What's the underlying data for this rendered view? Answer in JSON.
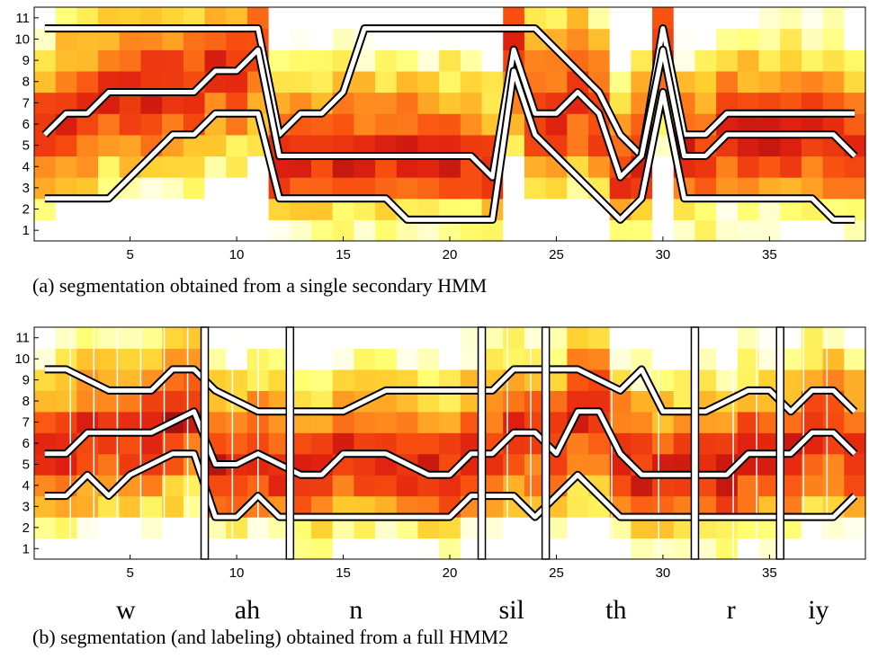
{
  "colors": {
    "map": [
      "#000000",
      "#5a0000",
      "#a01010",
      "#e02010",
      "#f85010",
      "#ff9020",
      "#ffd030",
      "#ffff70",
      "#ffffff"
    ]
  },
  "chart_data": [
    {
      "type": "heatmap",
      "caption": "(a) segmentation obtained from a single secondary HMM",
      "xlim": [
        0.5,
        39.5
      ],
      "ylim": [
        0.5,
        11.5
      ],
      "xticks": [
        5,
        10,
        15,
        20,
        25,
        30,
        35
      ],
      "yticks": [
        1,
        2,
        3,
        4,
        5,
        6,
        7,
        8,
        9,
        10,
        11
      ],
      "lines": [
        {
          "x": [
            1,
            2,
            3,
            4,
            5,
            6,
            7,
            8,
            9,
            10,
            11,
            12,
            13,
            14,
            15,
            16,
            17,
            18,
            19,
            20,
            21,
            22,
            23,
            24,
            25,
            26,
            27,
            28,
            29,
            30,
            31,
            32,
            33,
            34,
            35,
            36,
            37,
            38,
            39
          ],
          "y": [
            10.5,
            10.5,
            10.5,
            10.5,
            10.5,
            10.5,
            10.5,
            10.5,
            10.5,
            10.5,
            10.5,
            5.5,
            6.5,
            6.5,
            7.5,
            10.5,
            10.5,
            10.5,
            10.5,
            10.5,
            10.5,
            10.5,
            10.5,
            10.5,
            9.5,
            8.5,
            7.5,
            5.5,
            4.5,
            10.5,
            5.5,
            5.5,
            6.5,
            6.5,
            6.5,
            6.5,
            6.5,
            6.5,
            6.5
          ]
        },
        {
          "x": [
            1,
            2,
            3,
            4,
            5,
            6,
            7,
            8,
            9,
            10,
            11,
            12,
            13,
            14,
            15,
            16,
            17,
            18,
            19,
            20,
            21,
            22,
            23,
            24,
            25,
            26,
            27,
            28,
            29,
            30,
            31,
            32,
            33,
            34,
            35,
            36,
            37,
            38,
            39
          ],
          "y": [
            5.5,
            6.5,
            6.5,
            7.5,
            7.5,
            7.5,
            7.5,
            7.5,
            8.5,
            8.5,
            9.5,
            4.5,
            4.5,
            4.5,
            4.5,
            4.5,
            4.5,
            4.5,
            4.5,
            4.5,
            4.5,
            3.5,
            9.5,
            6.5,
            6.5,
            7.5,
            6.5,
            3.5,
            4.5,
            9.5,
            4.5,
            4.5,
            5.5,
            5.5,
            5.5,
            5.5,
            5.5,
            5.5,
            4.5
          ]
        },
        {
          "x": [
            1,
            2,
            3,
            4,
            5,
            6,
            7,
            8,
            9,
            10,
            11,
            12,
            13,
            14,
            15,
            16,
            17,
            18,
            19,
            20,
            21,
            22,
            23,
            24,
            25,
            26,
            27,
            28,
            29,
            30,
            31,
            32,
            33,
            34,
            35,
            36,
            37,
            38,
            39
          ],
          "y": [
            2.5,
            2.5,
            2.5,
            2.5,
            3.5,
            4.5,
            5.5,
            5.5,
            6.5,
            6.5,
            6.5,
            2.5,
            2.5,
            2.5,
            2.5,
            2.5,
            2.5,
            1.5,
            1.5,
            1.5,
            1.5,
            1.5,
            8.5,
            5.5,
            4.5,
            3.5,
            2.5,
            1.5,
            2.5,
            7.5,
            2.5,
            2.5,
            2.5,
            2.5,
            2.5,
            2.5,
            2.5,
            1.5,
            1.5
          ]
        }
      ],
      "vlines": [],
      "phonemes": []
    },
    {
      "type": "heatmap",
      "caption": "(b) segmentation (and labeling) obtained from a full HMM2",
      "xlim": [
        0.5,
        39.5
      ],
      "ylim": [
        0.5,
        11.5
      ],
      "xticks": [
        5,
        10,
        15,
        20,
        25,
        30,
        35
      ],
      "yticks": [
        1,
        2,
        3,
        4,
        5,
        6,
        7,
        8,
        9,
        10,
        11
      ],
      "lines": [
        {
          "x": [
            1,
            2,
            3,
            4,
            5,
            6,
            7,
            8,
            9,
            10,
            11,
            12,
            13,
            14,
            15,
            16,
            17,
            18,
            19,
            20,
            21,
            22,
            23,
            24,
            25,
            26,
            27,
            28,
            29,
            30,
            31,
            32,
            33,
            34,
            35,
            36,
            37,
            38,
            39
          ],
          "y": [
            9.5,
            9.5,
            9.0,
            8.5,
            8.5,
            8.5,
            9.5,
            9.5,
            8.5,
            8.0,
            7.5,
            7.5,
            7.5,
            7.5,
            7.5,
            8.0,
            8.5,
            8.5,
            8.5,
            8.5,
            8.5,
            8.5,
            9.5,
            9.5,
            9.5,
            9.5,
            9.0,
            8.5,
            9.5,
            7.5,
            7.5,
            7.5,
            8.0,
            8.5,
            8.5,
            7.5,
            8.5,
            8.5,
            7.5
          ]
        },
        {
          "x": [
            1,
            2,
            3,
            4,
            5,
            6,
            7,
            8,
            9,
            10,
            11,
            12,
            13,
            14,
            15,
            16,
            17,
            18,
            19,
            20,
            21,
            22,
            23,
            24,
            25,
            26,
            27,
            28,
            29,
            30,
            31,
            32,
            33,
            34,
            35,
            36,
            37,
            38,
            39
          ],
          "y": [
            5.5,
            5.5,
            6.5,
            6.5,
            6.5,
            6.5,
            7.0,
            7.5,
            5.0,
            5.0,
            5.5,
            5.0,
            4.5,
            4.5,
            5.5,
            5.5,
            5.5,
            5.0,
            4.5,
            4.5,
            5.5,
            5.5,
            6.5,
            6.5,
            5.5,
            7.5,
            7.5,
            5.5,
            4.5,
            4.5,
            4.5,
            4.5,
            4.5,
            5.5,
            5.5,
            5.5,
            6.5,
            6.5,
            5.5
          ]
        },
        {
          "x": [
            1,
            2,
            3,
            4,
            5,
            6,
            7,
            8,
            9,
            10,
            11,
            12,
            13,
            14,
            15,
            16,
            17,
            18,
            19,
            20,
            21,
            22,
            23,
            24,
            25,
            26,
            27,
            28,
            29,
            30,
            31,
            32,
            33,
            34,
            35,
            36,
            37,
            38,
            39
          ],
          "y": [
            3.5,
            3.5,
            4.5,
            3.5,
            4.5,
            5.0,
            5.5,
            5.5,
            2.5,
            2.5,
            3.5,
            2.5,
            2.5,
            2.5,
            2.5,
            2.5,
            2.5,
            2.5,
            2.5,
            2.5,
            3.5,
            3.5,
            3.5,
            2.5,
            3.5,
            4.5,
            3.5,
            2.5,
            2.5,
            2.5,
            2.5,
            2.5,
            2.5,
            2.5,
            2.5,
            2.5,
            2.5,
            2.5,
            3.5
          ]
        }
      ],
      "vlines": [
        2.2,
        3.3,
        4.4,
        5.5,
        6.6,
        7.7,
        9.8,
        11.0,
        21.6,
        22.7,
        23.8,
        27.6,
        29.8,
        33.3,
        34.4,
        36.6,
        37.7
      ],
      "boundaries": [
        8.5,
        12.5,
        21.5,
        24.5,
        31.5,
        35.5
      ],
      "phonemes": [
        {
          "label": "w",
          "x": 4.8
        },
        {
          "label": "ah",
          "x": 10.5
        },
        {
          "label": "n",
          "x": 15.6
        },
        {
          "label": "sil",
          "x": 22.9
        },
        {
          "label": "th",
          "x": 27.8
        },
        {
          "label": "r",
          "x": 33.2
        },
        {
          "label": "iy",
          "x": 37.3
        }
      ]
    }
  ]
}
